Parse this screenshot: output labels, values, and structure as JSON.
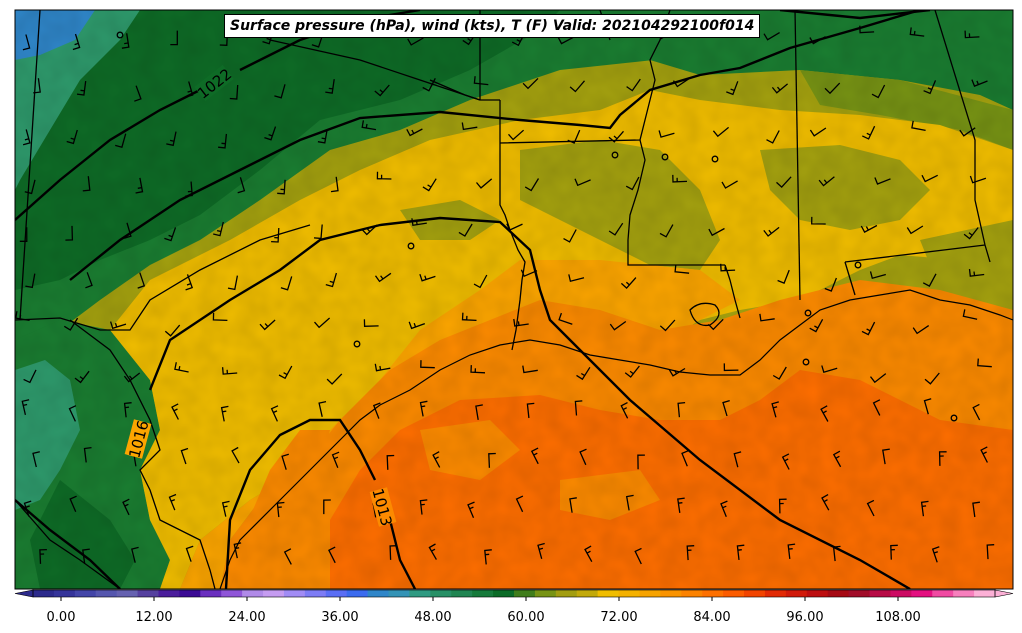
{
  "title": "Surface pressure (hPa), wind (kts), T (F) Valid: 202104292100f014",
  "isobar_labels": [
    "1022",
    "1016",
    "1013"
  ],
  "colorbar": {
    "tick_labels": [
      "0.00",
      "12.00",
      "24.00",
      "36.00",
      "48.00",
      "60.00",
      "72.00",
      "84.00",
      "96.00",
      "108.00"
    ],
    "range": [
      -3,
      120
    ],
    "step": 3,
    "colors": [
      "#2c2a8c",
      "#35349a",
      "#4345a8",
      "#5556ae",
      "#6561b0",
      "#55409f",
      "#4b1d9c",
      "#3b0a94",
      "#6a2fbf",
      "#8f55d8",
      "#b08ae8",
      "#c59cf1",
      "#a18cf5",
      "#7d7cf5",
      "#5a6ef5",
      "#3b6bef",
      "#2f86c9",
      "#3393b6",
      "#2f9a82",
      "#279066",
      "#208552",
      "#157a3b",
      "#0a6b27",
      "#3f7d1b",
      "#779314",
      "#a29d10",
      "#c2a90a",
      "#f0bd00",
      "#f4b100",
      "#f7a300",
      "#fa9300",
      "#fc8200",
      "#fe7000",
      "#fc5c00",
      "#f24400",
      "#e22a05",
      "#d11a0a",
      "#bd0e10",
      "#a60a14",
      "#a10d29",
      "#b70a45",
      "#cc0a63",
      "#e40f80",
      "#f04aa2",
      "#f77fbd",
      "#fcb0d6"
    ]
  },
  "colors": {
    "dark_green": "#0e6b26",
    "mid_green": "#1a7d31",
    "teal_green": "#2e9a6c",
    "olive": "#a4a10f",
    "yellow": "#f0bd00",
    "light_orange": "#fca500",
    "orange": "#fc8a00",
    "dark_orange": "#fe6e00",
    "ocean_orange": "#fc8000"
  }
}
